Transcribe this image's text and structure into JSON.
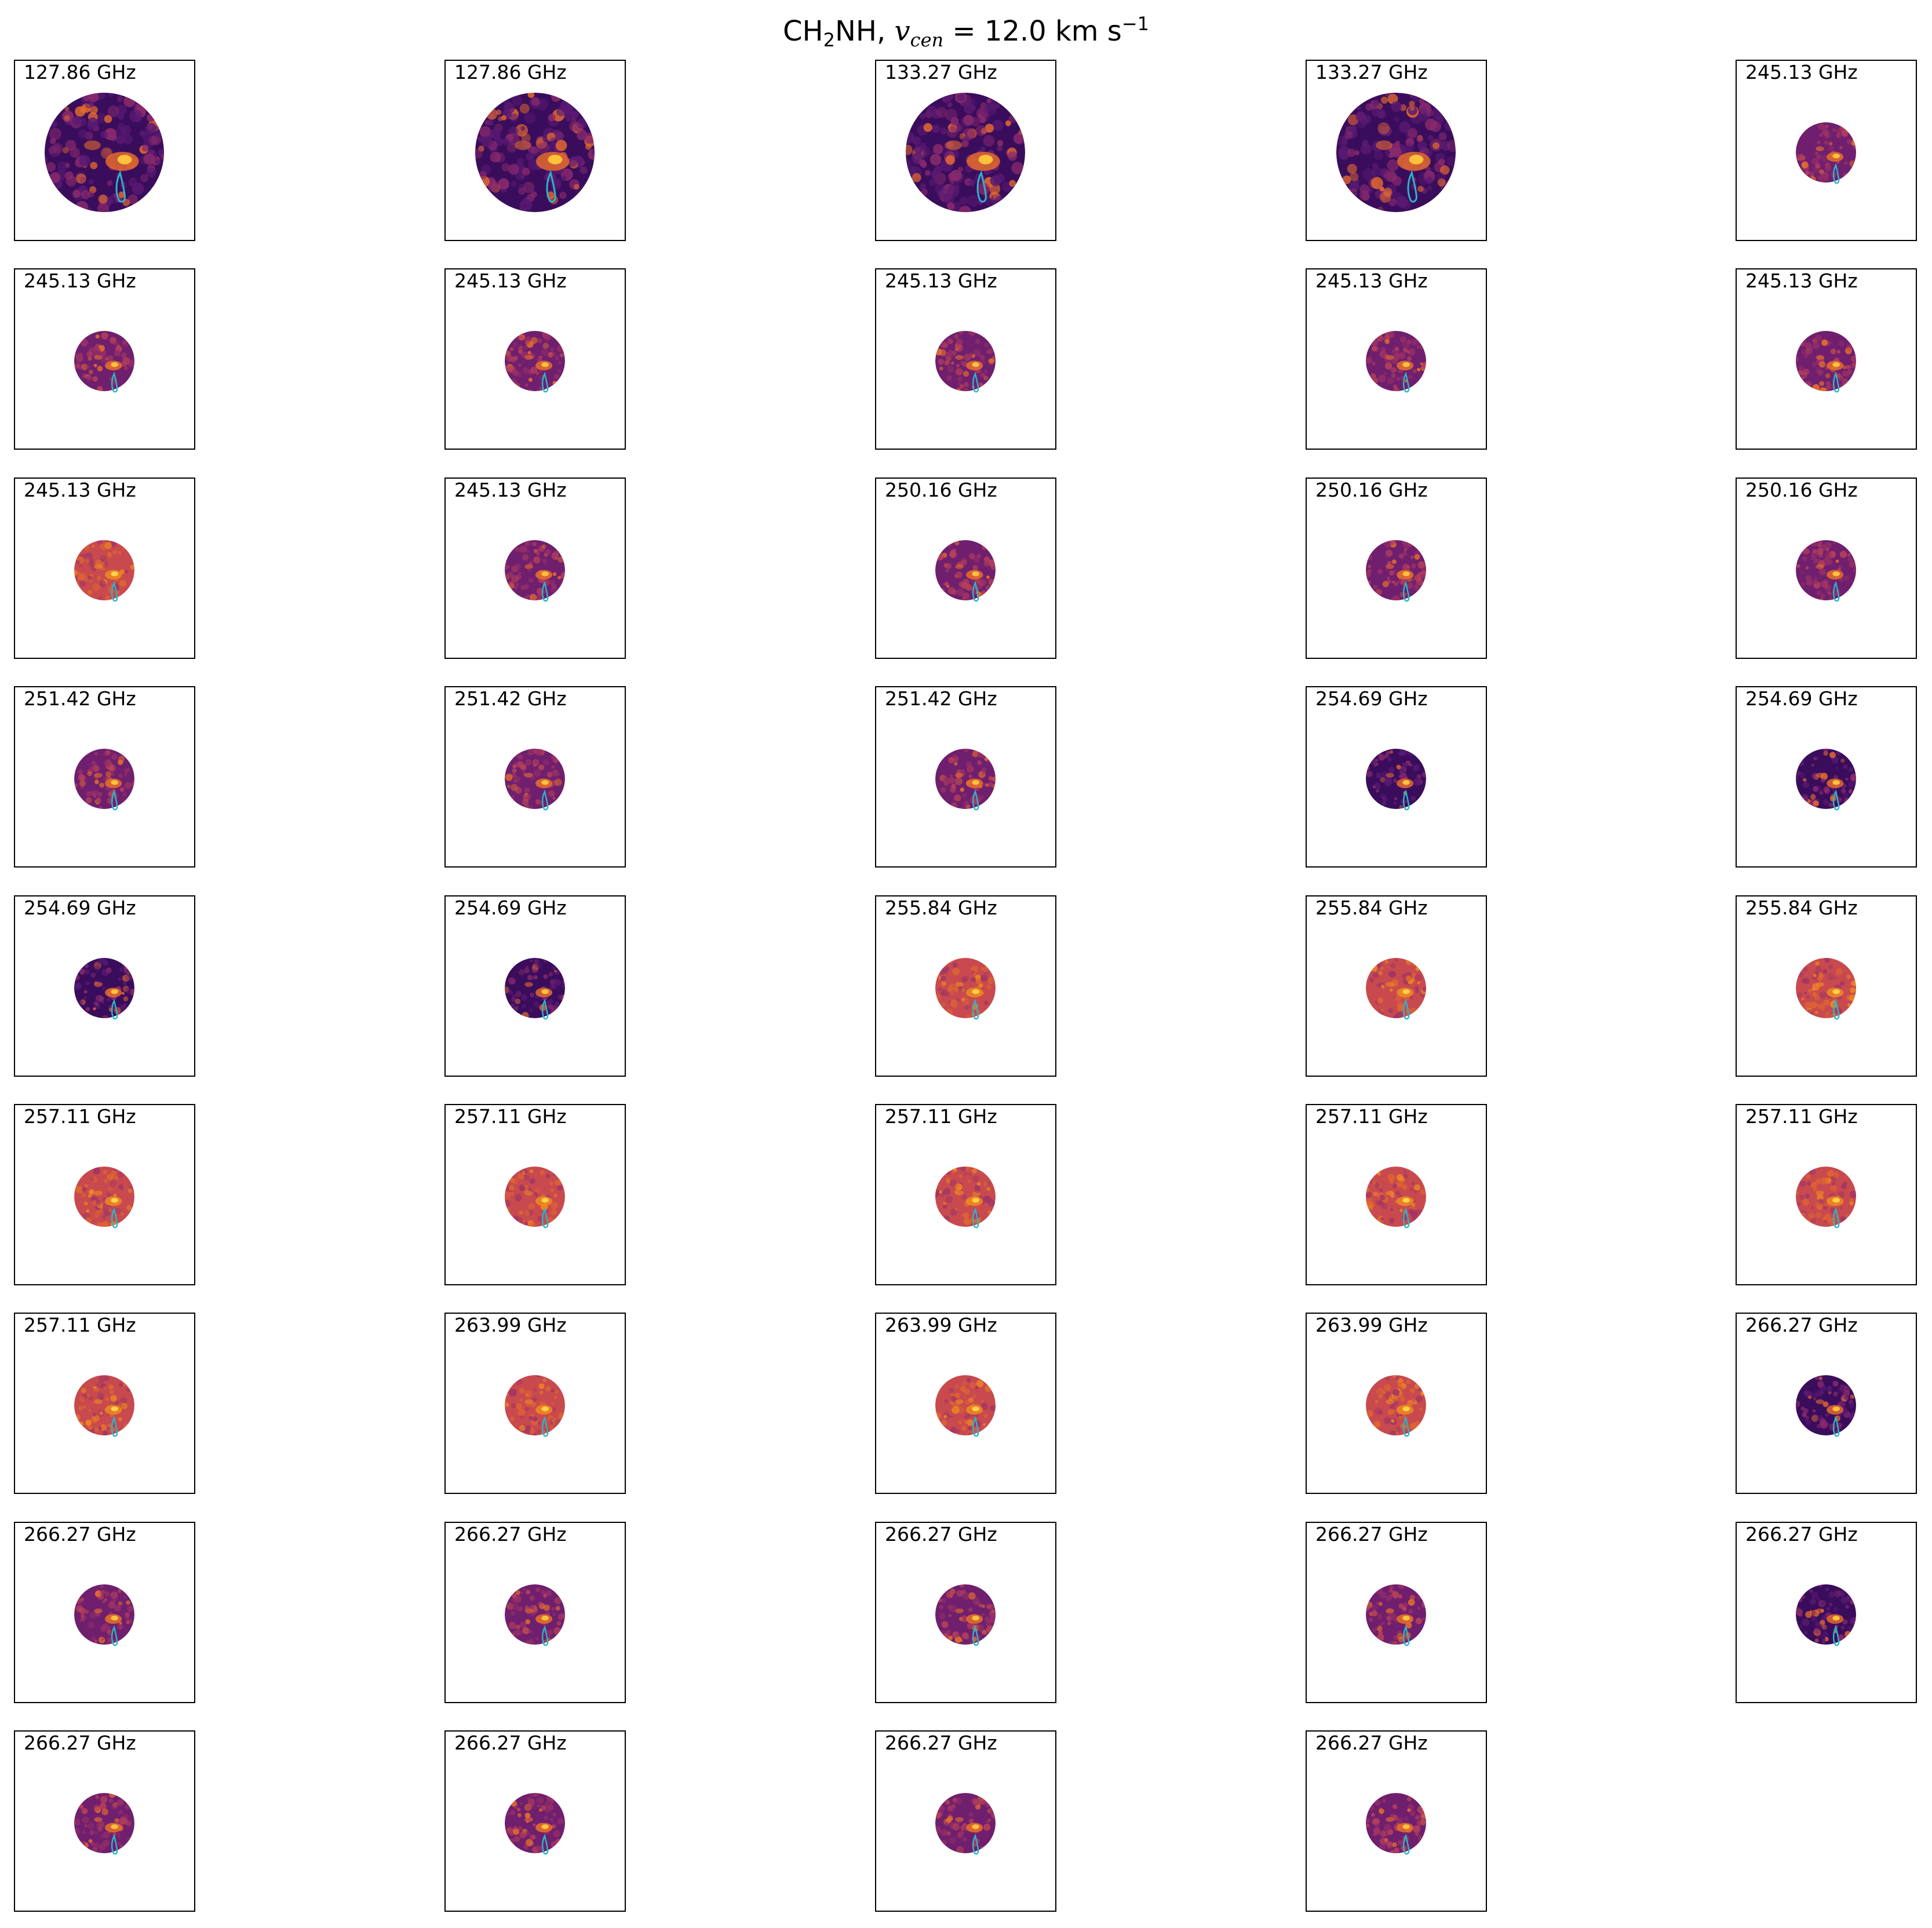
{
  "title": {
    "molecule_prefix": "CH",
    "molecule_subscript": "2",
    "molecule_suffix": "NH, ",
    "velocity_symbol": "v",
    "velocity_subscript": "cen",
    "velocity_value": " = 12.0 km s",
    "velocity_exponent": "−1"
  },
  "chart_data": {
    "type": "heatmap",
    "title": "CH2NH, v_cen = 12.0 km s^-1",
    "grid": {
      "rows": 9,
      "cols": 5
    },
    "colormap": "inferno",
    "contour_color": "#29b6c8",
    "panels": [
      {
        "label": "127.86 GHz",
        "beam": "large",
        "style": "dark"
      },
      {
        "label": "127.86 GHz",
        "beam": "large",
        "style": "dark"
      },
      {
        "label": "133.27 GHz",
        "beam": "large",
        "style": "dark"
      },
      {
        "label": "133.27 GHz",
        "beam": "large",
        "style": "dark"
      },
      {
        "label": "245.13 GHz",
        "beam": "small",
        "style": "mid"
      },
      {
        "label": "245.13 GHz",
        "beam": "small",
        "style": "mid"
      },
      {
        "label": "245.13 GHz",
        "beam": "small",
        "style": "mid"
      },
      {
        "label": "245.13 GHz",
        "beam": "small",
        "style": "mid"
      },
      {
        "label": "245.13 GHz",
        "beam": "small",
        "style": "mid"
      },
      {
        "label": "245.13 GHz",
        "beam": "small",
        "style": "mid"
      },
      {
        "label": "245.13 GHz",
        "beam": "small",
        "style": "bright"
      },
      {
        "label": "245.13 GHz",
        "beam": "small",
        "style": "mid"
      },
      {
        "label": "250.16 GHz",
        "beam": "small",
        "style": "mid"
      },
      {
        "label": "250.16 GHz",
        "beam": "small",
        "style": "mid"
      },
      {
        "label": "250.16 GHz",
        "beam": "small",
        "style": "mid"
      },
      {
        "label": "251.42 GHz",
        "beam": "small",
        "style": "mid"
      },
      {
        "label": "251.42 GHz",
        "beam": "small",
        "style": "mid"
      },
      {
        "label": "251.42 GHz",
        "beam": "small",
        "style": "mid"
      },
      {
        "label": "254.69 GHz",
        "beam": "small",
        "style": "dark"
      },
      {
        "label": "254.69 GHz",
        "beam": "small",
        "style": "dark"
      },
      {
        "label": "254.69 GHz",
        "beam": "small",
        "style": "dark"
      },
      {
        "label": "254.69 GHz",
        "beam": "small",
        "style": "dark"
      },
      {
        "label": "255.84 GHz",
        "beam": "small",
        "style": "bright"
      },
      {
        "label": "255.84 GHz",
        "beam": "small",
        "style": "bright"
      },
      {
        "label": "255.84 GHz",
        "beam": "small",
        "style": "bright"
      },
      {
        "label": "257.11 GHz",
        "beam": "small",
        "style": "bright"
      },
      {
        "label": "257.11 GHz",
        "beam": "small",
        "style": "bright"
      },
      {
        "label": "257.11 GHz",
        "beam": "small",
        "style": "bright"
      },
      {
        "label": "257.11 GHz",
        "beam": "small",
        "style": "bright"
      },
      {
        "label": "257.11 GHz",
        "beam": "small",
        "style": "bright"
      },
      {
        "label": "257.11 GHz",
        "beam": "small",
        "style": "bright"
      },
      {
        "label": "263.99 GHz",
        "beam": "small",
        "style": "bright"
      },
      {
        "label": "263.99 GHz",
        "beam": "small",
        "style": "bright"
      },
      {
        "label": "263.99 GHz",
        "beam": "small",
        "style": "bright"
      },
      {
        "label": "266.27 GHz",
        "beam": "small",
        "style": "dark"
      },
      {
        "label": "266.27 GHz",
        "beam": "small",
        "style": "mid"
      },
      {
        "label": "266.27 GHz",
        "beam": "small",
        "style": "mid"
      },
      {
        "label": "266.27 GHz",
        "beam": "small",
        "style": "mid"
      },
      {
        "label": "266.27 GHz",
        "beam": "small",
        "style": "mid"
      },
      {
        "label": "266.27 GHz",
        "beam": "small",
        "style": "dark"
      },
      {
        "label": "266.27 GHz",
        "beam": "small",
        "style": "mid"
      },
      {
        "label": "266.27 GHz",
        "beam": "small",
        "style": "mid"
      },
      {
        "label": "266.27 GHz",
        "beam": "small",
        "style": "mid"
      },
      {
        "label": "266.27 GHz",
        "beam": "small",
        "style": "mid"
      }
    ]
  }
}
